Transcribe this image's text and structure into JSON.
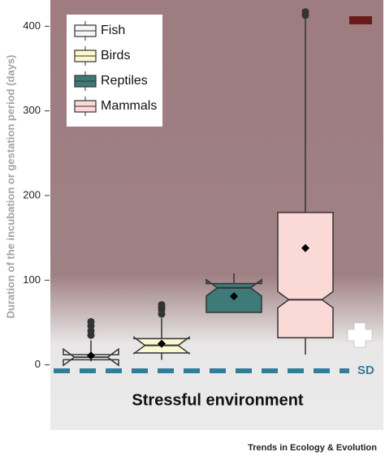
{
  "chart_data": {
    "type": "box",
    "y_label": "Duration of the incubation or gestation period (days)",
    "categories": [
      "Fish",
      "Birds",
      "Reptiles",
      "Mammals"
    ],
    "colors": [
      "#f4f6fa",
      "#fbf8d0",
      "#3e7a78",
      "#fbd9d7"
    ],
    "series": [
      {
        "name": "Fish",
        "min": 4,
        "q1": 6,
        "median": 9,
        "q3": 12,
        "max": 29,
        "mean": 11,
        "outliers": [
          35,
          40,
          46,
          51
        ]
      },
      {
        "name": "Birds",
        "min": 6,
        "q1": 14,
        "median": 23,
        "q3": 31,
        "max": 55,
        "mean": 25,
        "outliers": [
          60,
          65,
          68,
          71
        ]
      },
      {
        "name": "Reptiles",
        "min": 62,
        "q1": 62,
        "median": 91,
        "q3": 96,
        "max": 108,
        "mean": 81,
        "outliers": []
      },
      {
        "name": "Mammals",
        "min": 12,
        "q1": 32,
        "median": 77,
        "q3": 180,
        "max": 410,
        "mean": 138,
        "outliers": [
          413,
          417
        ]
      }
    ],
    "ylim": [
      -77,
      431
    ],
    "yticks": [
      0,
      100,
      200,
      300,
      400
    ],
    "annotations": {
      "sd": "SD",
      "environment": "Stressful environment"
    },
    "source": "Trends in Ecology & Evolution"
  }
}
